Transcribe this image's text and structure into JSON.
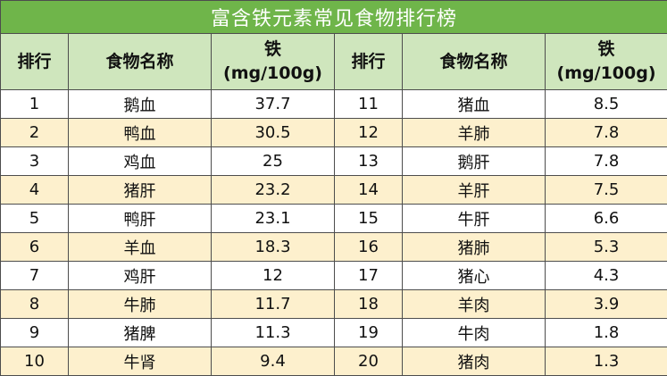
{
  "title": "富含铁元素常见食物排行榜",
  "headers": {
    "rank": "排行",
    "food_name": "食物名称",
    "iron_label": "铁",
    "iron_unit": "(mg/100g)"
  },
  "rows": [
    {
      "rank_a": "1",
      "food_a": "鹅血",
      "iron_a": "37.7",
      "rank_b": "11",
      "food_b": "猪血",
      "iron_b": "8.5"
    },
    {
      "rank_a": "2",
      "food_a": "鸭血",
      "iron_a": "30.5",
      "rank_b": "12",
      "food_b": "羊肺",
      "iron_b": "7.8"
    },
    {
      "rank_a": "3",
      "food_a": "鸡血",
      "iron_a": "25",
      "rank_b": "13",
      "food_b": "鹅肝",
      "iron_b": "7.8"
    },
    {
      "rank_a": "4",
      "food_a": "猪肝",
      "iron_a": "23.2",
      "rank_b": "14",
      "food_b": "羊肝",
      "iron_b": "7.5"
    },
    {
      "rank_a": "5",
      "food_a": "鸭肝",
      "iron_a": "23.1",
      "rank_b": "15",
      "food_b": "牛肝",
      "iron_b": "6.6"
    },
    {
      "rank_a": "6",
      "food_a": "羊血",
      "iron_a": "18.3",
      "rank_b": "16",
      "food_b": "猪肺",
      "iron_b": "5.3"
    },
    {
      "rank_a": "7",
      "food_a": "鸡肝",
      "iron_a": "12",
      "rank_b": "17",
      "food_b": "猪心",
      "iron_b": "4.3"
    },
    {
      "rank_a": "8",
      "food_a": "牛肺",
      "iron_a": "11.7",
      "rank_b": "18",
      "food_b": "羊肉",
      "iron_b": "3.9"
    },
    {
      "rank_a": "9",
      "food_a": "猪脾",
      "iron_a": "11.3",
      "rank_b": "19",
      "food_b": "牛肉",
      "iron_b": "1.8"
    },
    {
      "rank_a": "10",
      "food_a": "牛肾",
      "iron_a": "9.4",
      "rank_b": "20",
      "food_b": "猪肉",
      "iron_b": "1.3"
    }
  ],
  "colors": {
    "title_bg": "#6fb54a",
    "header_bg": "#cfe6bd",
    "alt_row_bg": "#fdf0cd",
    "border": "#4d4d4d"
  }
}
